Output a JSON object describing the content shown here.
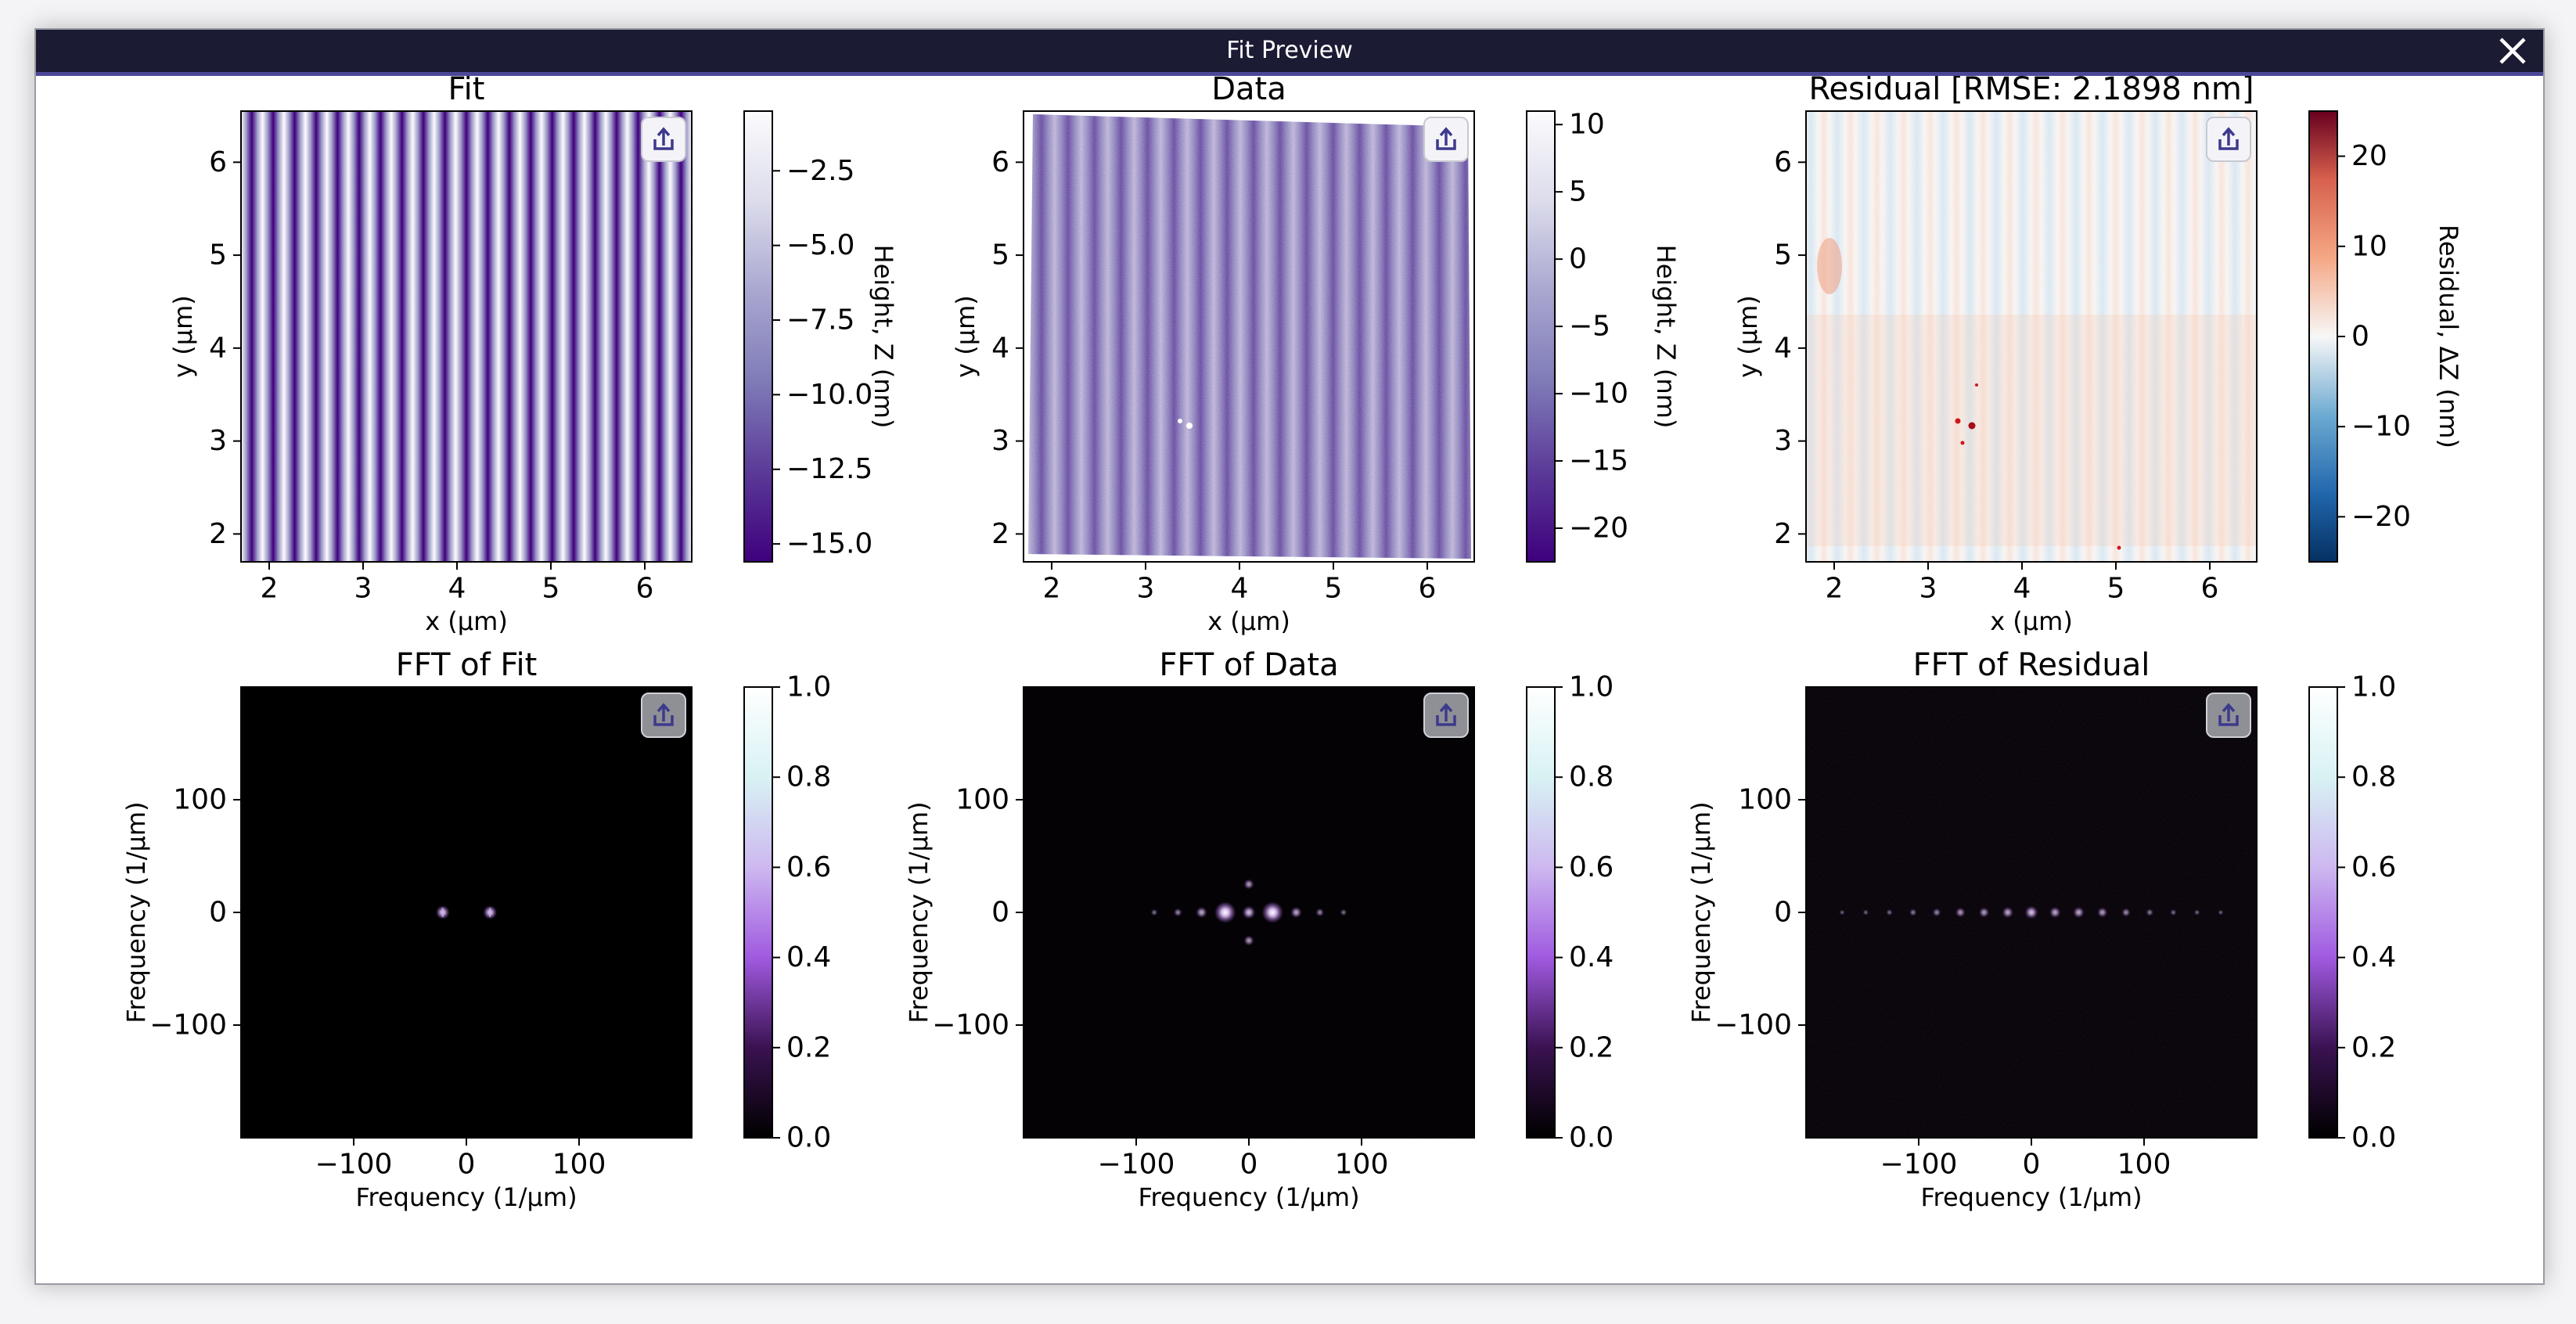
{
  "window": {
    "title": "Fit Preview",
    "close_icon": "close-icon"
  },
  "colors": {
    "titlebar": "#1c1b34",
    "titlebar_border": "#4c4898",
    "background": "#ffffff"
  },
  "export_icon": "export-share-icon",
  "chart_data": [
    {
      "type": "heatmap",
      "title": "Fit",
      "xlabel": "x (µm)",
      "ylabel": "y (µm)",
      "xlim": [
        1.7,
        6.5
      ],
      "ylim": [
        1.7,
        6.55
      ],
      "xticks": [
        "2",
        "3",
        "4",
        "5",
        "6"
      ],
      "yticks": [
        "2",
        "3",
        "4",
        "5",
        "6"
      ],
      "colorbar": {
        "label": "Height, Z (nm)",
        "range": [
          -15.6,
          -0.5
        ],
        "ticks": [
          "−2.5",
          "−5.0",
          "−7.5",
          "−10.0",
          "−12.5",
          "−15.0"
        ],
        "tick_values": [
          -2.5,
          -5,
          -7.5,
          -10,
          -12.5,
          -15
        ],
        "colormap": "Purples"
      },
      "pattern": "vertical sinusoidal stripes, 21 periods"
    },
    {
      "type": "heatmap",
      "title": "Data",
      "xlabel": "x (µm)",
      "ylabel": "y (µm)",
      "xlim": [
        1.7,
        6.5
      ],
      "ylim": [
        1.7,
        6.55
      ],
      "xticks": [
        "2",
        "3",
        "4",
        "5",
        "6"
      ],
      "yticks": [
        "2",
        "3",
        "4",
        "5",
        "6"
      ],
      "colorbar": {
        "label": "Height, Z (nm)",
        "range": [
          -22.5,
          11
        ],
        "ticks": [
          "10",
          "5",
          "0",
          "−5",
          "−10",
          "−15",
          "−20"
        ],
        "tick_values": [
          10,
          5,
          0,
          -5,
          -10,
          -15,
          -20
        ],
        "colormap": "Purples"
      },
      "pattern": "noisy vertical stripes, 17 periods"
    },
    {
      "type": "heatmap",
      "title": "Residual [RMSE: 2.1898 nm]",
      "xlabel": "x (µm)",
      "ylabel": "y (µm)",
      "xlim": [
        1.7,
        6.5
      ],
      "ylim": [
        1.7,
        6.55
      ],
      "xticks": [
        "2",
        "3",
        "4",
        "5",
        "6"
      ],
      "yticks": [
        "2",
        "3",
        "4",
        "5",
        "6"
      ],
      "colorbar": {
        "label": "Residual, ΔZ (nm)",
        "range": [
          -25,
          25
        ],
        "ticks": [
          "20",
          "10",
          "0",
          "−10",
          "−20"
        ],
        "tick_values": [
          20,
          10,
          0,
          -10,
          -20
        ],
        "colormap": "RdBu_r"
      },
      "pattern": "faint red/blue stripes near zero"
    },
    {
      "type": "heatmap",
      "title": "FFT of Fit",
      "xlabel": "Frequency (1/µm)",
      "ylabel": "Frequency (1/µm)",
      "xlim": [
        -200,
        200
      ],
      "ylim": [
        -200,
        200
      ],
      "xticks": [
        "−100",
        "0",
        "100"
      ],
      "yticks": [
        "100",
        "0",
        "−100"
      ],
      "colorbar": {
        "label": "",
        "range": [
          0,
          1
        ],
        "ticks": [
          "1.0",
          "0.8",
          "0.6",
          "0.4",
          "0.2",
          "0.0"
        ],
        "tick_values": [
          1,
          0.8,
          0.6,
          0.4,
          0.2,
          0
        ],
        "colormap": "magma-like"
      },
      "peaks": [
        [
          -21,
          0,
          0.5
        ],
        [
          21,
          0,
          0.5
        ]
      ]
    },
    {
      "type": "heatmap",
      "title": "FFT of Data",
      "xlabel": "Frequency (1/µm)",
      "ylabel": "Frequency (1/µm)",
      "xlim": [
        -200,
        200
      ],
      "ylim": [
        -200,
        200
      ],
      "xticks": [
        "−100",
        "0",
        "100"
      ],
      "yticks": [
        "100",
        "0",
        "−100"
      ],
      "colorbar": {
        "label": "",
        "range": [
          0,
          1
        ],
        "ticks": [
          "1.0",
          "0.8",
          "0.6",
          "0.4",
          "0.2",
          "0.0"
        ],
        "tick_values": [
          1,
          0.8,
          0.6,
          0.4,
          0.2,
          0
        ],
        "colormap": "magma-like"
      },
      "peaks": [
        [
          -21,
          0,
          0.9
        ],
        [
          21,
          0,
          0.9
        ],
        [
          0,
          0,
          0.45
        ],
        [
          -42,
          0,
          0.35
        ],
        [
          42,
          0,
          0.35
        ],
        [
          -63,
          0,
          0.2
        ],
        [
          63,
          0,
          0.2
        ],
        [
          -84,
          0,
          0.12
        ],
        [
          84,
          0,
          0.12
        ],
        [
          0,
          25,
          0.3
        ],
        [
          0,
          -25,
          0.3
        ]
      ]
    },
    {
      "type": "heatmap",
      "title": "FFT of Residual",
      "xlabel": "Frequency (1/µm)",
      "ylabel": "Frequency (1/µm)",
      "xlim": [
        -200,
        200
      ],
      "ylim": [
        -200,
        200
      ],
      "xticks": [
        "−100",
        "0",
        "100"
      ],
      "yticks": [
        "100",
        "0",
        "−100"
      ],
      "colorbar": {
        "label": "",
        "range": [
          0,
          1
        ],
        "ticks": [
          "1.0",
          "0.8",
          "0.6",
          "0.4",
          "0.2",
          "0.0"
        ],
        "tick_values": [
          1,
          0.8,
          0.6,
          0.4,
          0.2,
          0
        ],
        "colormap": "magma-like"
      },
      "peaks": [
        [
          0,
          0,
          0.45
        ],
        [
          -21,
          0,
          0.35
        ],
        [
          21,
          0,
          0.35
        ],
        [
          -42,
          0,
          0.3
        ],
        [
          42,
          0,
          0.35
        ],
        [
          -63,
          0,
          0.28
        ],
        [
          63,
          0,
          0.3
        ],
        [
          -84,
          0,
          0.2
        ],
        [
          84,
          0,
          0.22
        ],
        [
          -105,
          0,
          0.15
        ],
        [
          105,
          0,
          0.15
        ],
        [
          -126,
          0,
          0.1
        ],
        [
          126,
          0,
          0.1
        ],
        [
          -147,
          0,
          0.07
        ],
        [
          147,
          0,
          0.07
        ],
        [
          -168,
          0,
          0.05
        ],
        [
          168,
          0,
          0.05
        ]
      ]
    }
  ]
}
